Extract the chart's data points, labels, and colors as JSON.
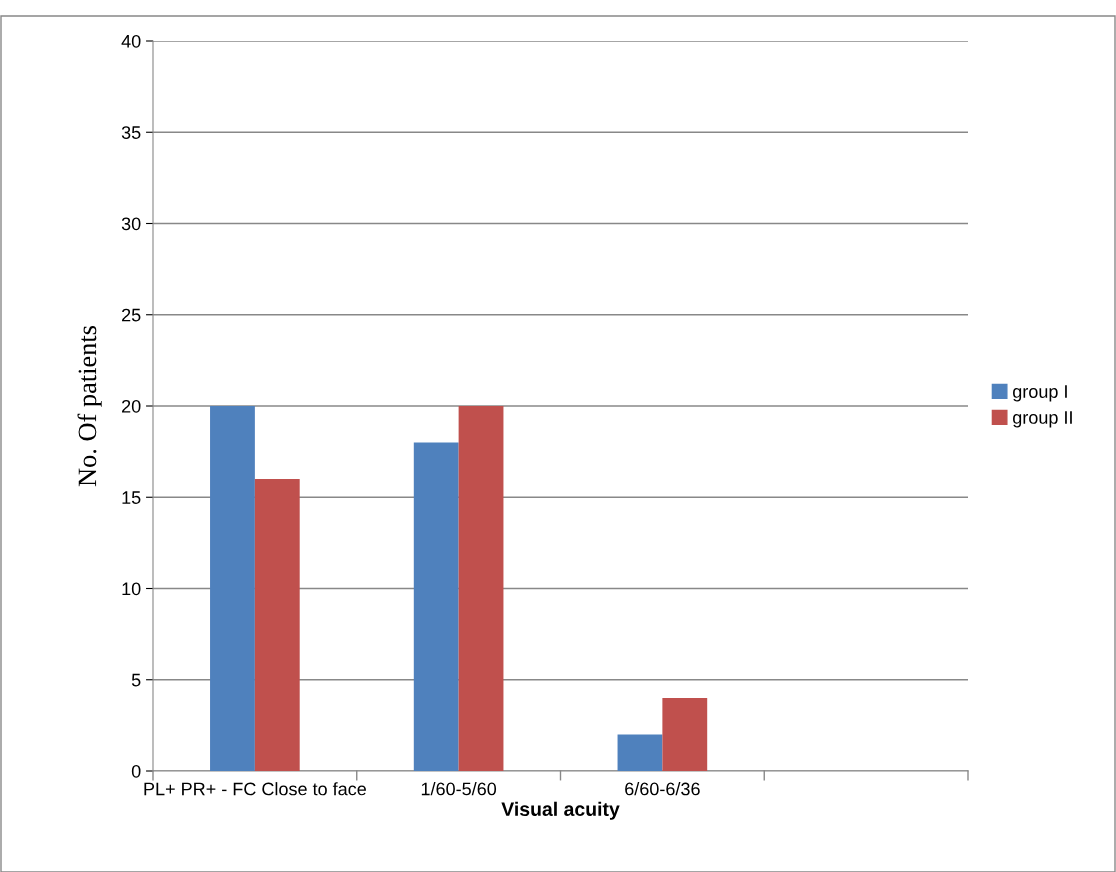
{
  "chart_data": {
    "type": "bar",
    "xlabel": "Visual acuity",
    "ylabel": "No. Of patients",
    "categories": [
      "PL+ PR+ - FC Close to face",
      "1/60-5/60",
      "6/60-6/36",
      null
    ],
    "series": [
      {
        "name": "group I",
        "color": "#4f81bd",
        "values": [
          20,
          18,
          2,
          null
        ]
      },
      {
        "name": "group II",
        "color": "#c0504d",
        "values": [
          16,
          20,
          4,
          null
        ]
      }
    ],
    "ylim": [
      0,
      40
    ],
    "yticks": [
      0,
      5,
      10,
      15,
      20,
      25,
      30,
      35,
      40
    ],
    "grid": "y",
    "legend": "right"
  }
}
